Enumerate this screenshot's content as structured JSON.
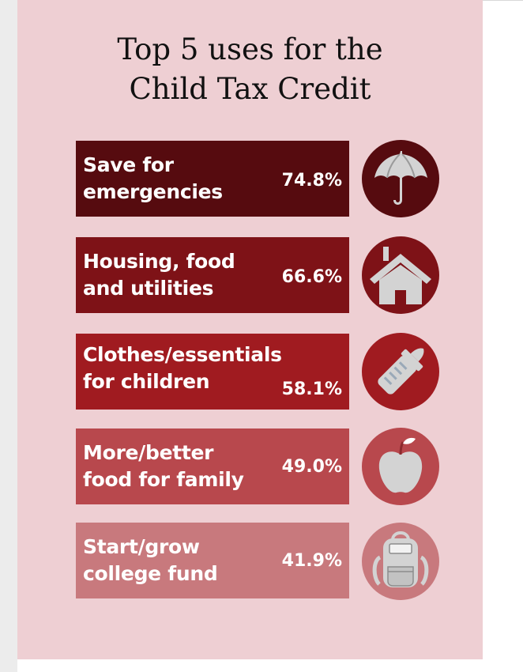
{
  "title_lines": [
    "Top 5 uses for the",
    "Child Tax Credit"
  ],
  "chart_data": {
    "type": "bar",
    "title": "Top 5 uses for the Child Tax Credit",
    "categories": [
      "Save for emergencies",
      "Housing, food and utilities",
      "Clothes/essentials for children",
      "More/better food for family",
      "Start/grow college fund"
    ],
    "values": [
      74.8,
      66.6,
      58.1,
      49.0,
      41.9
    ],
    "unit": "%"
  },
  "items": [
    {
      "label": "Save for\nemergencies",
      "value_label": "74.8%",
      "icon": "umbrella-icon",
      "bar_color": "#560b0f",
      "circle_color": "#560b0f"
    },
    {
      "label": "Housing, food\nand utilities",
      "value_label": "66.6%",
      "icon": "house-icon",
      "bar_color": "#7e1217",
      "circle_color": "#7e1217"
    },
    {
      "label": "Clothes/essentials\nfor children",
      "value_label": "58.1%",
      "icon": "baby-bottle-icon",
      "bar_color": "#a01b20",
      "circle_color": "#a01b20"
    },
    {
      "label": "More/better\nfood for family",
      "value_label": "49.0%",
      "icon": "apple-icon",
      "bar_color": "#b8484d",
      "circle_color": "#b8484d"
    },
    {
      "label": "Start/grow\ncollege fund",
      "value_label": "41.9%",
      "icon": "backpack-icon",
      "bar_color": "#c8797d",
      "circle_color": "#c8797d"
    }
  ],
  "colors": {
    "background": "#eecfd3",
    "icon_gray": "#d3d3d3",
    "text": "#111111"
  }
}
